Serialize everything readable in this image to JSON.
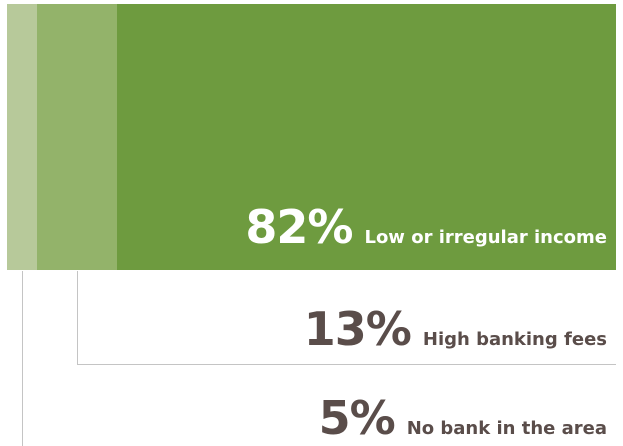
{
  "chart_data": {
    "type": "bar",
    "categories": [
      "Low or irregular income",
      "High banking fees",
      "No bank in the area"
    ],
    "values": [
      82,
      13,
      5
    ],
    "value_labels": [
      "82%",
      "13%",
      "5%"
    ],
    "unit": "%",
    "colors": {
      "primary": "#6e9b3f",
      "secondary": "#93b36a",
      "tertiary": "#b7c99a",
      "label_on_bar": "#ffffff",
      "label_off_bar": "#5a4d4a"
    }
  }
}
